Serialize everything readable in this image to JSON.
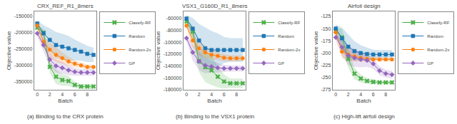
{
  "chart_data": [
    {
      "type": "line",
      "title": "CRX_REF_R1_8mers",
      "xlabel": "Batch",
      "ylabel": "Objective value",
      "caption": "(a) Binding to the CRX protein",
      "x": [
        0,
        1,
        2,
        3,
        4,
        5,
        6,
        7,
        8,
        9
      ],
      "xlim": [
        -0.5,
        9.5
      ],
      "xticks": [
        0,
        2,
        4,
        6,
        8
      ],
      "ylim": [
        -375000,
        -135000
      ],
      "yticks": [
        -350000,
        -300000,
        -250000,
        -200000,
        -150000
      ],
      "grid": false,
      "legend": "upper right",
      "series": [
        {
          "name": "Classify-RF",
          "color": "#4daf4a",
          "marker": "x",
          "values": [
            -185000,
            -200000,
            -305000,
            -335000,
            -345000,
            -348000,
            -360000,
            -365000,
            -365000,
            -365000
          ],
          "std_lo": [
            8000,
            12000,
            18000,
            22000,
            18000,
            15000,
            10000,
            8000,
            8000,
            8000
          ],
          "std_hi": [
            8000,
            12000,
            18000,
            22000,
            18000,
            15000,
            10000,
            8000,
            8000,
            8000
          ]
        },
        {
          "name": "Random",
          "color": "#1f77b4",
          "marker": "square",
          "values": [
            -172000,
            -202000,
            -222000,
            -238000,
            -243000,
            -248000,
            -253000,
            -258000,
            -265000,
            -268000
          ],
          "std_lo": [
            10000,
            25000,
            35000,
            40000,
            40000,
            38000,
            32000,
            28000,
            25000,
            22000
          ],
          "std_hi": [
            10000,
            25000,
            35000,
            40000,
            40000,
            38000,
            32000,
            28000,
            25000,
            22000
          ]
        },
        {
          "name": "Random-2x",
          "color": "#ff7f0e",
          "marker": "circle",
          "values": [
            -178000,
            -228000,
            -252000,
            -268000,
            -278000,
            -288000,
            -295000,
            -300000,
            -305000,
            -305000
          ],
          "std_lo": [
            7000,
            18000,
            22000,
            22000,
            18000,
            14000,
            10000,
            8000,
            7000,
            7000
          ],
          "std_hi": [
            7000,
            18000,
            22000,
            22000,
            18000,
            14000,
            10000,
            8000,
            7000,
            7000
          ]
        },
        {
          "name": "GP",
          "color": "#9467bd",
          "marker": "diamond",
          "values": [
            -202000,
            -238000,
            -282000,
            -302000,
            -308000,
            -315000,
            -320000,
            -322000,
            -322000,
            -322000
          ],
          "std_lo": [
            10000,
            18000,
            22000,
            20000,
            18000,
            15000,
            12000,
            10000,
            10000,
            10000
          ],
          "std_hi": [
            10000,
            18000,
            22000,
            20000,
            18000,
            15000,
            12000,
            10000,
            10000,
            10000
          ]
        }
      ]
    },
    {
      "type": "line",
      "title": "VSX1_G160D_R1_8mers",
      "xlabel": "Batch",
      "ylabel": "Objective value",
      "caption": "(b) Binding to the VSX1 protein",
      "x": [
        0,
        1,
        2,
        3,
        4,
        5,
        6,
        7,
        8,
        9
      ],
      "xlim": [
        -0.5,
        9.5
      ],
      "xticks": [
        0,
        2,
        4,
        6,
        8
      ],
      "ylim": [
        -180000,
        -48000
      ],
      "yticks": [
        -180000,
        -160000,
        -140000,
        -120000,
        -100000,
        -80000,
        -60000
      ],
      "grid": false,
      "legend": "upper right",
      "series": [
        {
          "name": "Classify-RF",
          "color": "#4daf4a",
          "marker": "x",
          "values": [
            -65000,
            -82000,
            -132000,
            -142000,
            -147000,
            -158000,
            -166000,
            -169000,
            -169000,
            -169000
          ],
          "std_lo": [
            3000,
            10000,
            18000,
            25000,
            25000,
            18000,
            12000,
            8000,
            8000,
            8000
          ],
          "std_hi": [
            3000,
            10000,
            18000,
            25000,
            25000,
            18000,
            12000,
            8000,
            8000,
            8000
          ]
        },
        {
          "name": "Random",
          "color": "#1f77b4",
          "marker": "square",
          "values": [
            -60000,
            -77000,
            -97000,
            -110000,
            -113000,
            -113000,
            -113000,
            -113000,
            -113000,
            -113000
          ],
          "std_lo": [
            6000,
            18000,
            28000,
            35000,
            32000,
            28000,
            22000,
            20000,
            20000,
            20000
          ],
          "std_hi": [
            6000,
            18000,
            28000,
            35000,
            32000,
            28000,
            22000,
            20000,
            20000,
            20000
          ]
        },
        {
          "name": "Random-2x",
          "color": "#ff7f0e",
          "marker": "circle",
          "values": [
            -72000,
            -97000,
            -110000,
            -117000,
            -121000,
            -123000,
            -126000,
            -127000,
            -127000,
            -127000
          ],
          "std_lo": [
            4000,
            12000,
            12000,
            10000,
            8000,
            7000,
            6000,
            5000,
            5000,
            5000
          ],
          "std_hi": [
            4000,
            12000,
            12000,
            10000,
            8000,
            7000,
            6000,
            5000,
            5000,
            5000
          ]
        },
        {
          "name": "GP",
          "color": "#9467bd",
          "marker": "diamond",
          "values": [
            -93000,
            -117000,
            -132000,
            -139000,
            -141000,
            -143000,
            -144000,
            -144000,
            -144000,
            -144000
          ],
          "std_lo": [
            5000,
            14000,
            15000,
            13000,
            10000,
            8000,
            6000,
            5000,
            5000,
            5000
          ],
          "std_hi": [
            5000,
            14000,
            15000,
            13000,
            10000,
            8000,
            6000,
            5000,
            5000,
            5000
          ]
        }
      ]
    },
    {
      "type": "line",
      "title": "Airfoil design",
      "xlabel": "Batch",
      "ylabel": "Objective value",
      "caption": "(c) High-lift airfoil design",
      "x": [
        0,
        1,
        2,
        3,
        4,
        5,
        6,
        7,
        8,
        9
      ],
      "xlim": [
        -0.5,
        9.5
      ],
      "xticks": [
        0,
        2,
        4,
        6,
        8
      ],
      "ylim": [
        -275,
        -115
      ],
      "yticks": [
        -275,
        -250,
        -225,
        -200,
        -175,
        -150,
        -125
      ],
      "grid": false,
      "legend": "upper right",
      "series": [
        {
          "name": "Classify-RF",
          "color": "#4daf4a",
          "marker": "x",
          "values": [
            -155,
            -168,
            -212,
            -242,
            -252,
            -257,
            -259,
            -260,
            -260,
            -260
          ],
          "std_lo": [
            5,
            18,
            18,
            12,
            8,
            6,
            5,
            4,
            4,
            4
          ],
          "std_hi": [
            5,
            18,
            18,
            12,
            8,
            6,
            5,
            4,
            4,
            4
          ]
        },
        {
          "name": "Random",
          "color": "#1f77b4",
          "marker": "square",
          "values": [
            -150,
            -170,
            -187,
            -196,
            -200,
            -202,
            -203,
            -203,
            -203,
            -203
          ],
          "std_lo": [
            8,
            22,
            25,
            20,
            16,
            13,
            10,
            9,
            9,
            9
          ],
          "std_hi": [
            8,
            22,
            25,
            20,
            16,
            13,
            10,
            9,
            9,
            9
          ]
        },
        {
          "name": "Random-2x",
          "color": "#ff7f0e",
          "marker": "circle",
          "values": [
            -158,
            -197,
            -203,
            -207,
            -210,
            -212,
            -213,
            -213,
            -213,
            -213
          ],
          "std_lo": [
            5,
            13,
            13,
            10,
            8,
            6,
            5,
            4,
            4,
            4
          ],
          "std_hi": [
            5,
            13,
            13,
            10,
            8,
            6,
            5,
            4,
            4,
            4
          ]
        },
        {
          "name": "GP",
          "color": "#9467bd",
          "marker": "diamond",
          "values": [
            -168,
            -188,
            -205,
            -210,
            -213,
            -215,
            -222,
            -236,
            -242,
            -244
          ],
          "std_lo": [
            7,
            18,
            20,
            18,
            16,
            13,
            10,
            9,
            8,
            8
          ],
          "std_hi": [
            7,
            18,
            20,
            18,
            16,
            13,
            10,
            9,
            8,
            8
          ]
        }
      ]
    }
  ]
}
